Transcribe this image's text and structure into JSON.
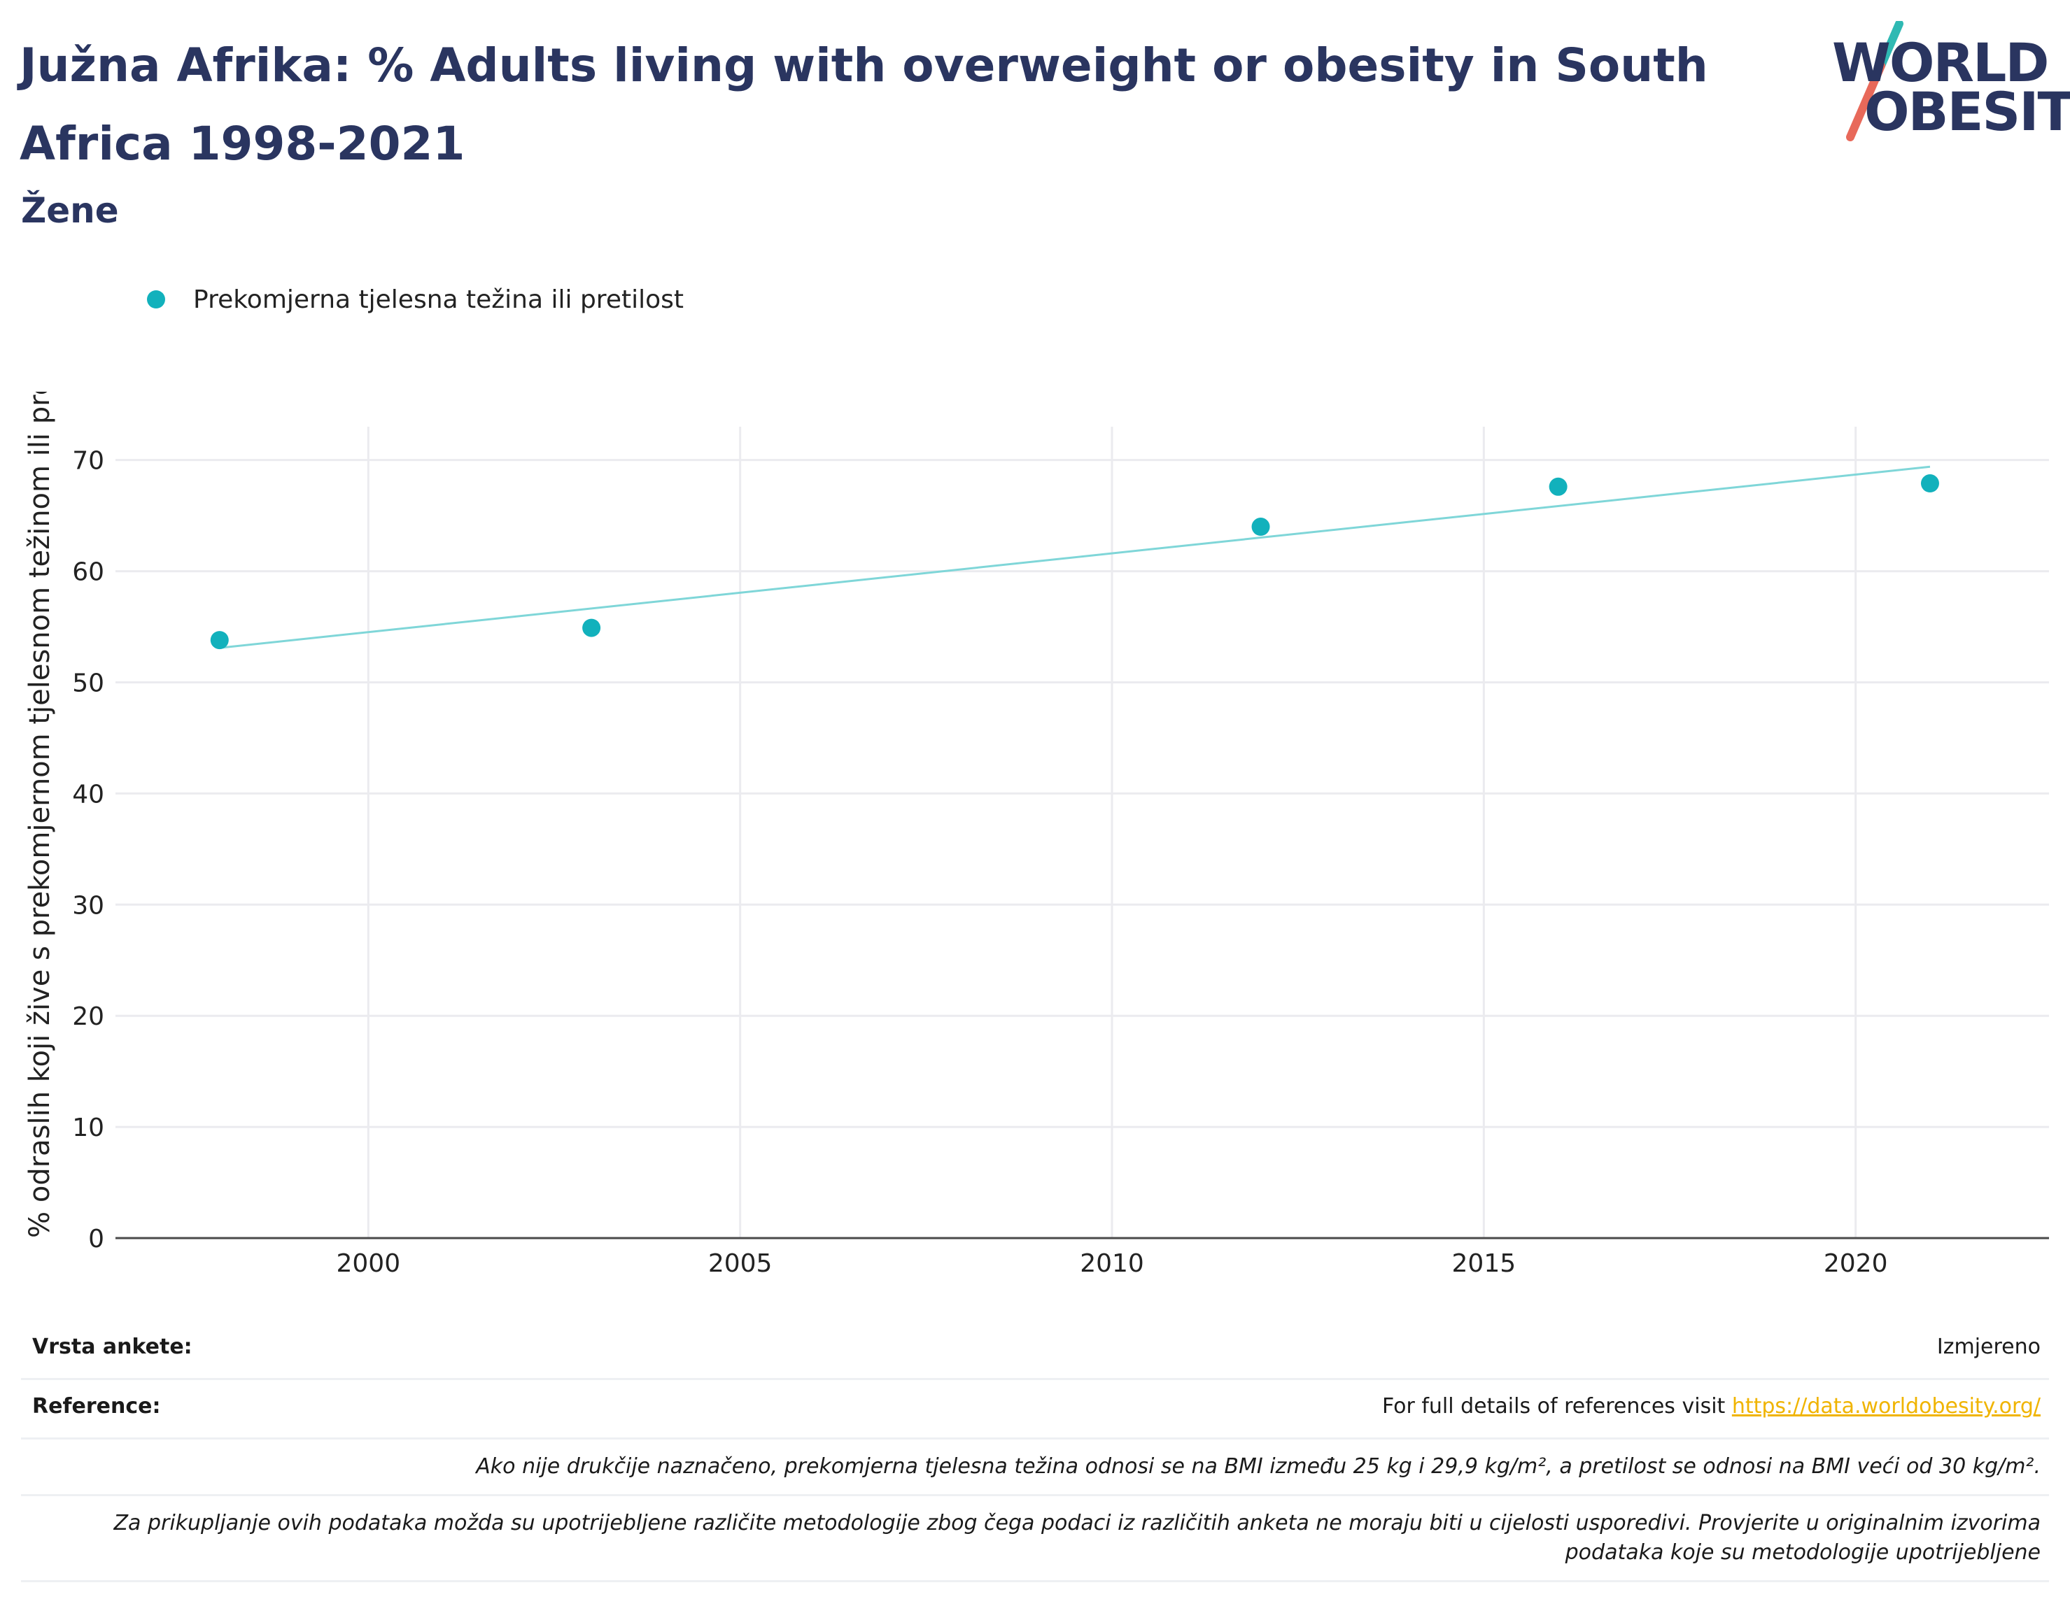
{
  "header": {
    "title": "Južna Afrika: % Adults living with overweight or obesity in South Africa 1998-2021",
    "subtitle": "Žene"
  },
  "logo": {
    "line1": "WORLD",
    "line2": "OBESITY",
    "slash_colors": [
      "#2fb9b3",
      "#e8695a"
    ],
    "color": "#2a3560"
  },
  "legend": {
    "label": "Prekomjerna tjelesna težina ili pretilost",
    "color": "#12b1bc"
  },
  "chart_data": {
    "type": "scatter",
    "ylabel": "% odraslih koji žive s prekomjernom tjelesnom težinom ili pretilošću",
    "xlim": [
      1996.6,
      2022.6
    ],
    "ylim": [
      0,
      73
    ],
    "x_ticks": [
      2000,
      2005,
      2010,
      2015,
      2020
    ],
    "y_ticks": [
      0,
      10,
      20,
      30,
      40,
      50,
      60,
      70
    ],
    "grid": true,
    "legend_position": "top-left",
    "series": [
      {
        "name": "Prekomjerna tjelesna težina ili pretilost",
        "color": "#12b1bc",
        "points": [
          {
            "x": 1998,
            "y": 53.8
          },
          {
            "x": 2003,
            "y": 54.9
          },
          {
            "x": 2012,
            "y": 64.0
          },
          {
            "x": 2016,
            "y": 67.6
          },
          {
            "x": 2021,
            "y": 67.9
          }
        ]
      }
    ],
    "trendline": {
      "color": "#7fd6d8",
      "points": [
        {
          "x": 1998,
          "y": 53.1
        },
        {
          "x": 2021,
          "y": 69.4
        }
      ]
    }
  },
  "footer": {
    "survey_label": "Vrsta ankete:",
    "survey_value": "Izmjereno",
    "reference_label": "Reference:",
    "reference_text": "For full details of references visit ",
    "reference_link": "https://data.worldobesity.org/",
    "note1": "Ako nije drukčije naznačeno, prekomjerna tjelesna težina odnosi se na BMI između 25 kg i 29,9 kg/m², a pretilost se odnosi na BMI veći od 30 kg/m².",
    "note2": "Za prikupljanje ovih podataka možda su upotrijebljene različite metodologije zbog čega podaci iz različitih anketa ne moraju biti u cijelosti usporedivi. Provjerite u originalnim izvorima podataka koje su metodologije upotrijebljene"
  }
}
